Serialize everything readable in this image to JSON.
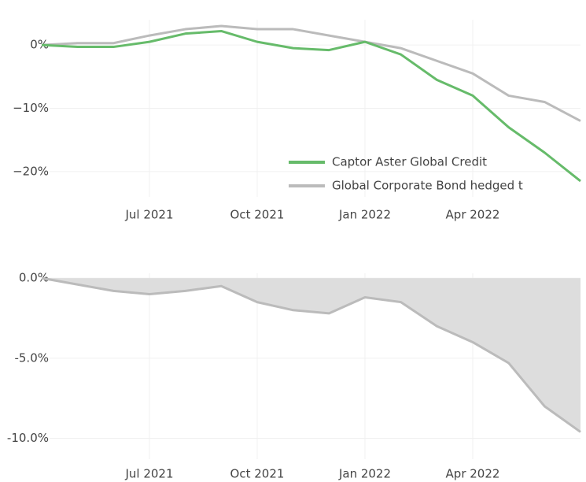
{
  "chart_data": [
    {
      "type": "line",
      "x": [
        "2021-04",
        "2021-05",
        "2021-06",
        "2021-07",
        "2021-08",
        "2021-09",
        "2021-10",
        "2021-11",
        "2021-12",
        "2022-01",
        "2022-02",
        "2022-03",
        "2022-04",
        "2022-05",
        "2022-06",
        "2022-07"
      ],
      "series": [
        {
          "name": "Captor Aster Global Credit",
          "color": "#66bb6a",
          "values": [
            0,
            -0.3,
            -0.3,
            0.5,
            1.8,
            2.2,
            0.5,
            -0.5,
            -0.8,
            0.5,
            -1.5,
            -5.5,
            -8,
            -13,
            -17,
            -21.5
          ]
        },
        {
          "name": "Global Corporate Bond hedged t",
          "color": "#bbbbbb",
          "values": [
            0,
            0.3,
            0.3,
            1.5,
            2.5,
            3,
            2.5,
            2.5,
            1.5,
            0.5,
            -0.5,
            -2.5,
            -4.5,
            -8,
            -9,
            -12
          ]
        }
      ],
      "xlim": [
        "2021-04",
        "2022-07"
      ],
      "xticks": [
        {
          "value": "2021-07",
          "label": "Jul 2021"
        },
        {
          "value": "2021-10",
          "label": "Oct 2021"
        },
        {
          "value": "2022-01",
          "label": "Jan 2022"
        },
        {
          "value": "2022-04",
          "label": "Apr 2022"
        }
      ],
      "ylim": [
        -24,
        4
      ],
      "yticks": [
        {
          "value": 0,
          "label": "0%"
        },
        {
          "value": -10,
          "label": "−10%"
        },
        {
          "value": -20,
          "label": "−20%"
        }
      ],
      "grid": true,
      "legend": "lower right"
    },
    {
      "type": "area",
      "x": [
        "2021-04",
        "2021-05",
        "2021-06",
        "2021-07",
        "2021-08",
        "2021-09",
        "2021-10",
        "2021-11",
        "2021-12",
        "2022-01",
        "2022-02",
        "2022-03",
        "2022-04",
        "2022-05",
        "2022-06",
        "2022-07"
      ],
      "series": [
        {
          "color": "#bbbbbb",
          "fill": "#dddddd",
          "values": [
            0,
            -0.4,
            -0.8,
            -1,
            -0.8,
            -0.5,
            -1.5,
            -2,
            -2.2,
            -1.2,
            -1.5,
            -3,
            -4,
            -5.3,
            -8,
            -9.6
          ]
        }
      ],
      "xlim": [
        "2021-04",
        "2022-07"
      ],
      "xticks": [
        {
          "value": "2021-07",
          "label": "Jul 2021"
        },
        {
          "value": "2021-10",
          "label": "Oct 2021"
        },
        {
          "value": "2022-01",
          "label": "Jan 2022"
        },
        {
          "value": "2022-04",
          "label": "Apr 2022"
        }
      ],
      "ylim": [
        -11.3,
        0.3
      ],
      "yticks": [
        {
          "value": 0,
          "label": "0.0%"
        },
        {
          "value": -5,
          "label": "-5.0%"
        },
        {
          "value": -10,
          "label": "-10.0%"
        }
      ],
      "grid": true
    }
  ]
}
